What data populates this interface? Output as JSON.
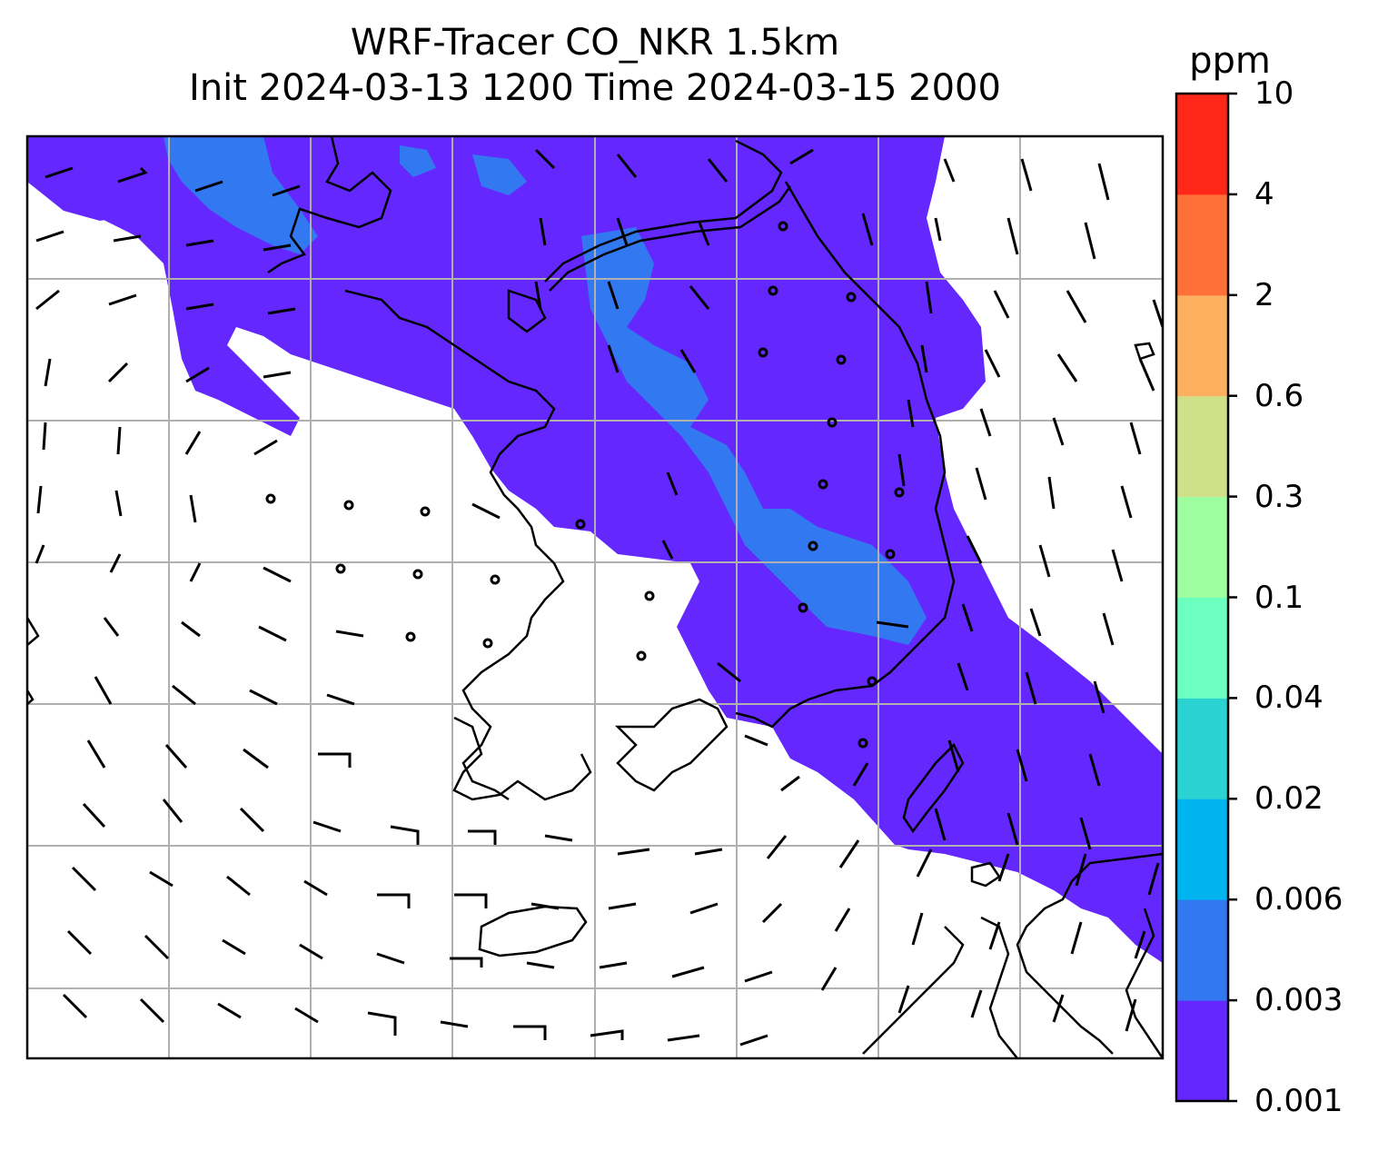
{
  "title": {
    "line1": "WRF-Tracer CO_NKR 1.5km",
    "line2": "Init 2024-03-13 1200 Time 2024-03-15 2000"
  },
  "colorbar": {
    "unit": "ppm",
    "levels": [
      "0.001",
      "0.003",
      "0.006",
      "0.02",
      "0.04",
      "0.1",
      "0.3",
      "0.6",
      "2",
      "4",
      "10"
    ],
    "colors": [
      "#6428ff",
      "#3278f0",
      "#00b4f0",
      "#2ad2d2",
      "#6cffc0",
      "#9dffa0",
      "#d0e08a",
      "#fdb060",
      "#ff7038",
      "#ff2818"
    ]
  },
  "map": {
    "type": "filled-contour-with-wind-barbs",
    "field": "CO tracer concentration",
    "grid": true,
    "grid_color": "#b0b0b0",
    "fill_colors": {
      "low": "#6428ff",
      "mid": "#3278f0"
    }
  }
}
